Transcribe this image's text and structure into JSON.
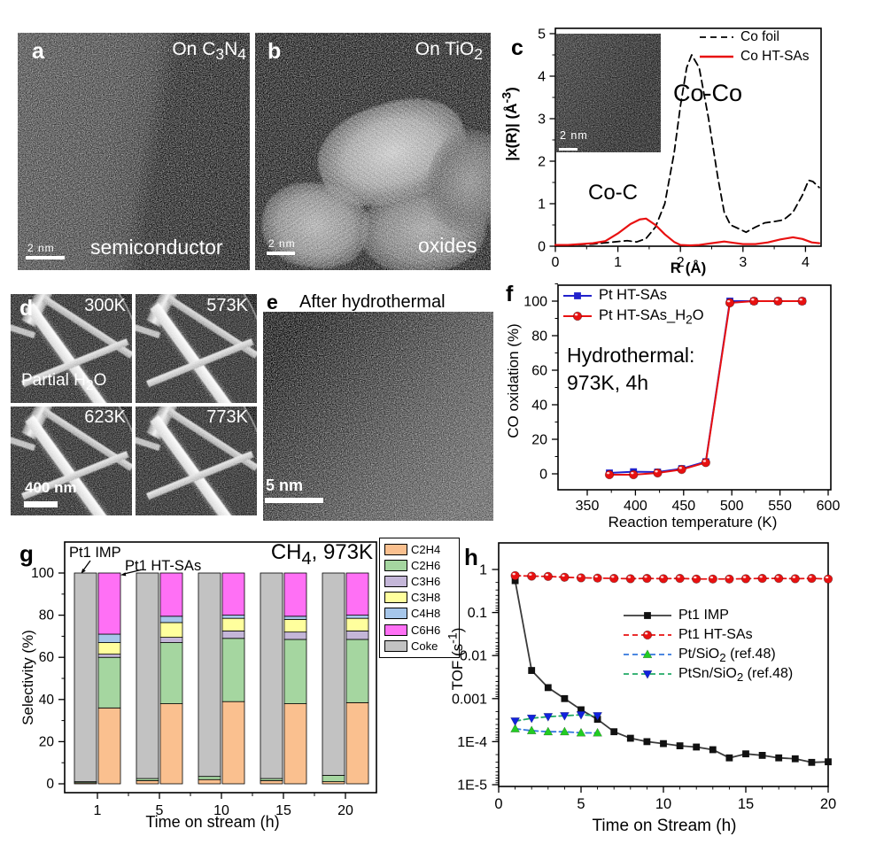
{
  "panels": {
    "a": {
      "letter": "a",
      "corner_label_html": "On C<sub>3</sub>N<sub>4</sub>",
      "caption": "semiconductor",
      "scalebar": "2 nm"
    },
    "b": {
      "letter": "b",
      "corner_label_html": "On TiO<sub>2</sub>",
      "caption": "oxides",
      "scalebar": "2 nm"
    },
    "c": {
      "letter": "c"
    },
    "d": {
      "letter": "d",
      "temperatures": [
        "300K",
        "573K",
        "623K",
        "773K"
      ],
      "condition_html": "Partial H<sub>2</sub>O",
      "scalebar": "400 nm"
    },
    "e": {
      "letter": "e",
      "title": "After hydrothermal",
      "scalebar": "5 nm"
    },
    "f": {
      "letter": "f"
    },
    "g": {
      "letter": "g"
    },
    "h": {
      "letter": "h"
    }
  },
  "chart_data": [
    {
      "id": "exafs",
      "type": "line",
      "panel": "c",
      "xlabel": "R (Å)",
      "ylabel_html": "|x(R)| (Å<sup>-3</sup>)",
      "xlim": [
        0,
        4.25
      ],
      "ylim": [
        0,
        5
      ],
      "xticks": [
        0,
        1,
        2,
        3,
        4
      ],
      "yticks": [
        0,
        1,
        2,
        3,
        4,
        5
      ],
      "inset_scalebar": "2 nm",
      "annotations": [
        {
          "text": "Co-Co"
        },
        {
          "text": "Co-C"
        }
      ],
      "series": [
        {
          "name": "Co foil",
          "color": "#000000",
          "style": "dashed",
          "points": [
            [
              0,
              0.02
            ],
            [
              0.2,
              0.03
            ],
            [
              0.4,
              0.04
            ],
            [
              0.6,
              0.05
            ],
            [
              0.8,
              0.08
            ],
            [
              1.0,
              0.11
            ],
            [
              1.15,
              0.13
            ],
            [
              1.3,
              0.1
            ],
            [
              1.45,
              0.18
            ],
            [
              1.6,
              0.45
            ],
            [
              1.75,
              1.0
            ],
            [
              1.9,
              2.2
            ],
            [
              2.0,
              3.3
            ],
            [
              2.1,
              4.2
            ],
            [
              2.18,
              4.5
            ],
            [
              2.3,
              4.2
            ],
            [
              2.45,
              3.0
            ],
            [
              2.6,
              1.6
            ],
            [
              2.7,
              0.8
            ],
            [
              2.8,
              0.5
            ],
            [
              2.95,
              0.4
            ],
            [
              3.05,
              0.33
            ],
            [
              3.2,
              0.45
            ],
            [
              3.35,
              0.55
            ],
            [
              3.5,
              0.58
            ],
            [
              3.65,
              0.62
            ],
            [
              3.8,
              0.8
            ],
            [
              3.95,
              1.2
            ],
            [
              4.05,
              1.55
            ],
            [
              4.12,
              1.52
            ],
            [
              4.22,
              1.38
            ]
          ]
        },
        {
          "name": "Co HT-SAs",
          "color": "#e81111",
          "style": "solid",
          "points": [
            [
              0,
              0.03
            ],
            [
              0.2,
              0.03
            ],
            [
              0.4,
              0.05
            ],
            [
              0.6,
              0.07
            ],
            [
              0.8,
              0.12
            ],
            [
              1.0,
              0.3
            ],
            [
              1.2,
              0.52
            ],
            [
              1.35,
              0.63
            ],
            [
              1.45,
              0.65
            ],
            [
              1.6,
              0.5
            ],
            [
              1.75,
              0.28
            ],
            [
              1.9,
              0.1
            ],
            [
              2.0,
              0.03
            ],
            [
              2.15,
              0.02
            ],
            [
              2.3,
              0.03
            ],
            [
              2.5,
              0.07
            ],
            [
              2.7,
              0.11
            ],
            [
              2.85,
              0.08
            ],
            [
              3.0,
              0.05
            ],
            [
              3.2,
              0.05
            ],
            [
              3.4,
              0.09
            ],
            [
              3.6,
              0.16
            ],
            [
              3.8,
              0.21
            ],
            [
              3.95,
              0.17
            ],
            [
              4.1,
              0.09
            ],
            [
              4.22,
              0.07
            ]
          ]
        }
      ]
    },
    {
      "id": "co-oxidation",
      "type": "line",
      "panel": "f",
      "xlabel": "Reaction temperature (K)",
      "ylabel": "CO oxidation (%)",
      "xlim": [
        338,
        612
      ],
      "ylim": [
        -12,
        112
      ],
      "xticks": [
        350,
        400,
        450,
        500,
        550,
        600
      ],
      "yticks": [
        0,
        20,
        40,
        60,
        80,
        100
      ],
      "note_line1": "Hydrothermal:",
      "note_line2": "973K, 4h",
      "x": [
        373,
        398,
        423,
        448,
        473,
        498,
        523,
        548,
        573
      ],
      "series": [
        {
          "name": "Pt HT-SAs",
          "name_html": "Pt HT-SAs",
          "color": "#2222cc",
          "marker": "square",
          "y": [
            0.5,
            1.2,
            1,
            3,
            7,
            100,
            100,
            100,
            100
          ]
        },
        {
          "name": "Pt HT-SAs_H2O",
          "name_html": "Pt HT-SAs_H<sub>2</sub>O",
          "color": "#e81111",
          "marker": "circle",
          "y": [
            -0.5,
            -0.5,
            0.5,
            2.5,
            6.5,
            99,
            100,
            100,
            100
          ]
        }
      ]
    },
    {
      "id": "selectivity",
      "type": "stacked-bar",
      "panel": "g",
      "title_html": "CH<sub>4</sub>, 973K",
      "xlabel": "Time on stream (h)",
      "ylabel": "Selectivity (%)",
      "categories": [
        "1",
        "5",
        "10",
        "15",
        "20"
      ],
      "yticks": [
        0,
        20,
        40,
        60,
        80,
        100
      ],
      "ylim": [
        0,
        100
      ],
      "components": [
        {
          "name": "C2H4",
          "color": "#fac08f"
        },
        {
          "name": "C2H6",
          "color": "#a5d6a0"
        },
        {
          "name": "C3H6",
          "color": "#c4b6d8"
        },
        {
          "name": "C3H8",
          "color": "#ffff9d"
        },
        {
          "name": "C4H8",
          "color": "#a6c6ea"
        },
        {
          "name": "C6H6",
          "color": "#ff70f5"
        },
        {
          "name": "Coke",
          "color": "#c2c2c2"
        }
      ],
      "groups": [
        {
          "name": "Pt1 IMP",
          "values": [
            [
              0.5,
              0.5,
              0,
              0,
              0,
              0,
              99
            ],
            [
              1.5,
              1,
              0,
              0,
              0,
              0,
              97.5
            ],
            [
              2,
              1.5,
              0,
              0,
              0,
              0,
              96.5
            ],
            [
              1.5,
              1,
              0,
              0,
              0,
              0,
              97.5
            ],
            [
              1,
              3,
              0,
              0,
              0,
              0,
              96
            ]
          ]
        },
        {
          "name": "Pt1 HT-SAs",
          "values": [
            [
              36,
              24,
              1.5,
              5.5,
              4,
              29,
              0
            ],
            [
              38,
              29,
              2.5,
              7,
              3,
              20.5,
              0
            ],
            [
              39,
              30,
              3.5,
              6,
              1.5,
              20,
              0
            ],
            [
              38,
              30.5,
              3.5,
              6,
              1.5,
              20.5,
              0
            ],
            [
              38.5,
              30,
              4,
              6,
              1.5,
              20,
              0
            ]
          ]
        }
      ]
    },
    {
      "id": "tof",
      "type": "line-log",
      "panel": "h",
      "xlabel": "Time on Stream (h)",
      "ylabel_html": "TOF (s<sup>-1</sup>)",
      "xlim": [
        0,
        20.5
      ],
      "xticks": [
        0,
        5,
        10,
        15,
        20
      ],
      "ytick_labels": [
        "1",
        "0.1",
        "0.01",
        "0.001",
        "1E-4",
        "1E-5"
      ],
      "series": [
        {
          "name": "Pt1 IMP",
          "name_html": "Pt1 IMP",
          "marker": "square",
          "marker_color": "#111111",
          "line_color": "#3a3a3a",
          "line_style": "solid",
          "x": [
            1,
            2,
            3,
            4,
            5,
            6,
            7,
            8,
            9,
            10,
            11,
            12,
            13,
            14,
            15,
            16,
            17,
            18,
            19,
            20
          ],
          "y": [
            0.55,
            0.0045,
            0.0018,
            0.001,
            0.00055,
            0.00033,
            0.00017,
            0.00012,
            0.0001,
            9e-05,
            8e-05,
            7.5e-05,
            6.5e-05,
            4.2e-05,
            5.2e-05,
            4.8e-05,
            4.2e-05,
            4e-05,
            3.3e-05,
            3.4e-05
          ]
        },
        {
          "name": "Pt1 HT-SAs",
          "name_html": "Pt1 HT-SAs",
          "marker": "circle",
          "marker_color": "#e81111",
          "line_color": "#e81111",
          "line_style": "dashed",
          "x": [
            1,
            2,
            3,
            4,
            5,
            6,
            7,
            8,
            9,
            10,
            11,
            12,
            13,
            14,
            15,
            16,
            17,
            18,
            19,
            20
          ],
          "y": [
            0.72,
            0.7,
            0.69,
            0.66,
            0.64,
            0.63,
            0.62,
            0.61,
            0.62,
            0.61,
            0.62,
            0.6,
            0.6,
            0.6,
            0.61,
            0.62,
            0.62,
            0.61,
            0.62,
            0.6
          ]
        },
        {
          "name": "Pt/SiO2 (ref.48)",
          "name_html": "Pt/SiO<sub>2</sub> (ref.48)",
          "marker": "triangle-up",
          "marker_color": "#22cc22",
          "line_color": "#3377dd",
          "line_style": "dashed",
          "x": [
            1,
            2,
            3,
            4,
            5,
            6
          ],
          "y": [
            0.0002,
            0.00018,
            0.00017,
            0.00017,
            0.00016,
            0.00016
          ]
        },
        {
          "name": "PtSn/SiO2 (ref.48)",
          "name_html": "PtSn/SiO<sub>2</sub> (ref.48)",
          "marker": "triangle-down",
          "marker_color": "#1122dd",
          "line_color": "#22aa66",
          "line_style": "dashed",
          "x": [
            1,
            2,
            3,
            4,
            5,
            6
          ],
          "y": [
            0.0003,
            0.00035,
            0.00038,
            0.0004,
            0.00042,
            0.0004
          ]
        }
      ]
    }
  ]
}
